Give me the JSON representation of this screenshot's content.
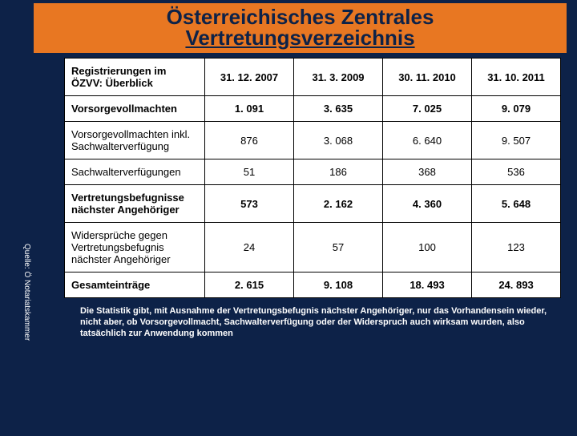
{
  "title": {
    "line1": "Österreichisches Zentrales",
    "line2": "Vertretungsverzeichnis"
  },
  "table": {
    "header_label": "Registrierungen im ÖZVV: Überblick",
    "columns": [
      "31. 12. 2007",
      "31. 3. 2009",
      "30. 11. 2010",
      "31. 10. 2011"
    ],
    "rows": [
      {
        "label": "Vorsorgevollmachten",
        "bold": true,
        "values": [
          "1. 091",
          "3. 635",
          "7. 025",
          "9. 079"
        ]
      },
      {
        "label": "Vorsorgevollmachten inkl. Sachwalterverfügung",
        "bold": false,
        "values": [
          "876",
          "3. 068",
          "6. 640",
          "9. 507"
        ]
      },
      {
        "label": "Sachwalterverfügungen",
        "bold": false,
        "values": [
          "51",
          "186",
          "368",
          "536"
        ]
      },
      {
        "label": "Vertretungsbefugnisse nächster Angehöriger",
        "bold": true,
        "values": [
          "573",
          "2. 162",
          "4. 360",
          "5. 648"
        ]
      },
      {
        "label": "Widersprüche gegen Vertretungsbefugnis nächster Angehöriger",
        "bold": false,
        "values": [
          "24",
          "57",
          "100",
          "123"
        ]
      },
      {
        "label": "Gesamteinträge",
        "bold": true,
        "values": [
          "2. 615",
          "9. 108",
          "18. 493",
          "24. 893"
        ]
      }
    ]
  },
  "footnote": "Die Statistik gibt, mit Ausnahme der Vertretungsbefugnis nächster Angehöriger, nur das Vorhandensein wieder, nicht aber, ob Vorsorgevollmacht, Sachwalterverfügung oder der Widerspruch auch wirksam wurden, also tatsächlich zur Anwendung kommen",
  "source": "Quelle: Ö Notariatskammer",
  "colors": {
    "background": "#0d2248",
    "title_bg": "#e87722",
    "cell_bg": "#ffffff",
    "border": "#000000",
    "text_light": "#ffffff",
    "text_dark": "#000000"
  }
}
